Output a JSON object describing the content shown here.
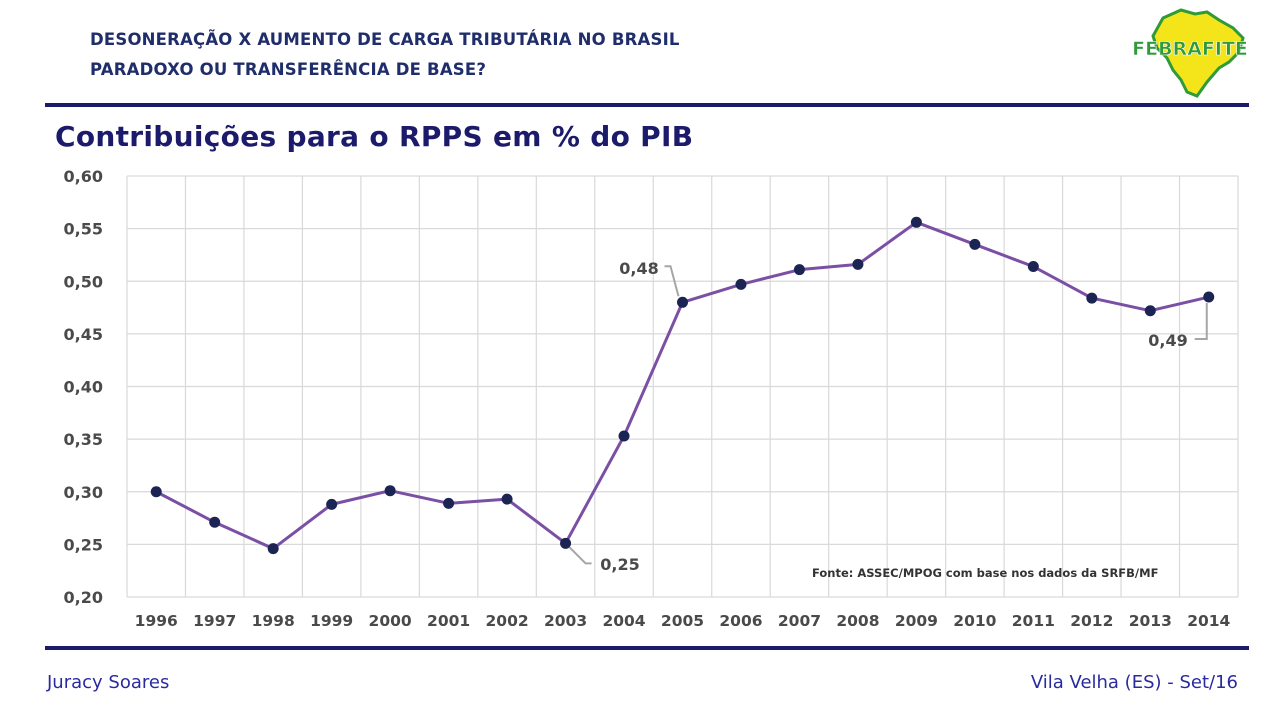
{
  "header": {
    "line1": "DESONERAÇÃO X AUMENTO DE CARGA TRIBUTÁRIA NO BRASIL",
    "line2": "PARADOXO OU TRANSFERÊNCIA DE BASE?",
    "logo_text": "FEBRAFITE"
  },
  "title": "Contribuições para o RPPS em % do PIB",
  "footer": {
    "left": "Juracy Soares",
    "right": "Vila Velha (ES) - Set/16"
  },
  "colors": {
    "navy": "#1c1a6b",
    "line": "#7b4fa3",
    "marker": "#1b2453",
    "grid": "#d9d9d9",
    "logo_green": "#2e9a3a",
    "logo_yellow": "#f4e51a"
  },
  "chart_data": {
    "type": "line",
    "categories": [
      "1996",
      "1997",
      "1998",
      "1999",
      "2000",
      "2001",
      "2002",
      "2003",
      "2004",
      "2005",
      "2006",
      "2007",
      "2008",
      "2009",
      "2010",
      "2011",
      "2012",
      "2013",
      "2014"
    ],
    "series": [
      {
        "values": [
          0.3,
          0.271,
          0.246,
          0.288,
          0.301,
          0.289,
          0.293,
          0.251,
          0.353,
          0.48,
          0.497,
          0.511,
          0.516,
          0.556,
          0.535,
          0.514,
          0.484,
          0.472,
          0.485
        ]
      }
    ],
    "ylim": [
      0.2,
      0.6
    ],
    "yticks": [
      "0,60",
      "0,55",
      "0,50",
      "0,45",
      "0,40",
      "0,35",
      "0,30",
      "0,25",
      "0,20"
    ],
    "grid": true,
    "annotations": [
      {
        "index": 7,
        "text": "0,25"
      },
      {
        "index": 9,
        "text": "0,48"
      },
      {
        "index": 18,
        "text": "0,49"
      }
    ],
    "source": "Fonte: ASSEC/MPOG com base nos dados da SRFB/MF"
  }
}
